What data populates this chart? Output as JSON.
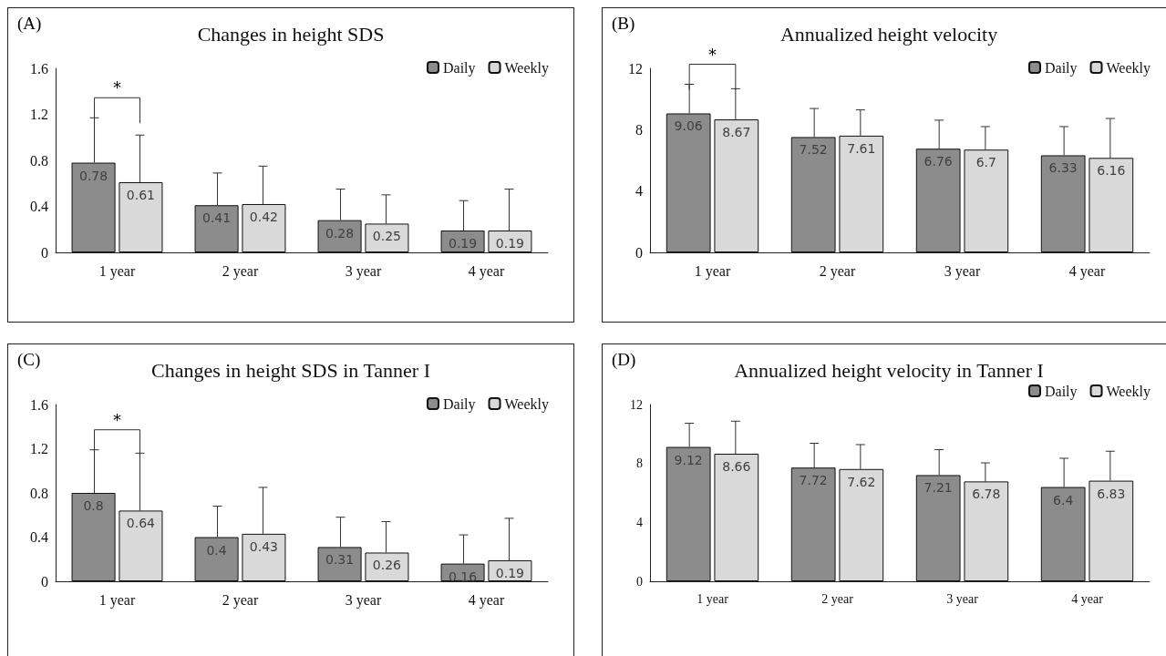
{
  "chart_data": [
    {
      "type": "bar",
      "title": "Changes in height SDS",
      "annotations": [
        "(A)",
        "*"
      ],
      "categories": [
        "1 year",
        "2 year",
        "3 year",
        "4 year"
      ],
      "series": [
        {
          "name": "Daily",
          "color": "#8c8c8c",
          "values": [
            0.78,
            0.41,
            0.28,
            0.19
          ],
          "errors": [
            [
              0.78,
              1.17
            ],
            [
              0.41,
              0.69
            ],
            [
              0.28,
              0.55
            ],
            [
              0.19,
              0.45
            ]
          ]
        },
        {
          "name": "Weekly",
          "color": "#d9d9d9",
          "values": [
            0.61,
            0.42,
            0.25,
            0.19
          ],
          "errors": [
            [
              0.61,
              1.02
            ],
            [
              0.42,
              0.75
            ],
            [
              0.25,
              0.5
            ],
            [
              0.19,
              0.55
            ]
          ]
        }
      ],
      "ylim": [
        0,
        1.6
      ],
      "yticks": [
        0,
        0.4,
        0.8,
        1.2,
        1.6
      ],
      "data_labels": true,
      "legend": "top right",
      "grid": false
    },
    {
      "type": "bar",
      "title": "Annualized height velocity",
      "annotations": [
        "(B)",
        "*"
      ],
      "categories": [
        "1 year",
        "2 year",
        "3 year",
        "4 year"
      ],
      "series": [
        {
          "name": "Daily",
          "color": "#8c8c8c",
          "values": [
            9.06,
            7.52,
            6.76,
            6.33
          ],
          "errors": [
            [
              9.06,
              10.96
            ],
            [
              7.52,
              9.38
            ],
            [
              6.76,
              8.62
            ],
            [
              6.33,
              8.2
            ]
          ]
        },
        {
          "name": "Weekly",
          "color": "#d9d9d9",
          "values": [
            8.67,
            7.61,
            6.7,
            6.16
          ],
          "errors": [
            [
              8.67,
              10.67
            ],
            [
              7.61,
              9.29
            ],
            [
              6.7,
              8.2
            ],
            [
              6.16,
              8.73
            ]
          ]
        }
      ],
      "ylim": [
        0,
        12
      ],
      "yticks": [
        0,
        4,
        8,
        12
      ],
      "data_labels": true,
      "legend": "top right",
      "grid": false
    },
    {
      "type": "bar",
      "title": "Changes in height SDS in Tanner I",
      "annotations": [
        "(C)",
        "*"
      ],
      "categories": [
        "1 year",
        "2 year",
        "3 year",
        "4 year"
      ],
      "series": [
        {
          "name": "Daily",
          "color": "#8c8c8c",
          "values": [
            0.8,
            0.4,
            0.31,
            0.16
          ],
          "errors": [
            [
              0.8,
              1.19
            ],
            [
              0.4,
              0.68
            ],
            [
              0.31,
              0.58
            ],
            [
              0.16,
              0.42
            ]
          ]
        },
        {
          "name": "Weekly",
          "color": "#d9d9d9",
          "values": [
            0.64,
            0.43,
            0.26,
            0.19
          ],
          "errors": [
            [
              0.64,
              1.16
            ],
            [
              0.43,
              0.85
            ],
            [
              0.26,
              0.54
            ],
            [
              0.19,
              0.57
            ]
          ]
        }
      ],
      "ylim": [
        0,
        1.6
      ],
      "yticks": [
        0,
        0.4,
        0.8,
        1.2,
        1.6
      ],
      "data_labels": true,
      "legend": "top right",
      "grid": false
    },
    {
      "type": "bar",
      "title": "Annualized height velocity in Tanner I",
      "annotations": [
        "(D)"
      ],
      "categories": [
        "1 year",
        "2 year",
        "3 year",
        "4 year"
      ],
      "series": [
        {
          "name": "Daily",
          "color": "#8c8c8c",
          "values": [
            9.12,
            7.72,
            7.21,
            6.4
          ],
          "errors": [
            [
              9.12,
              10.73
            ],
            [
              7.72,
              9.37
            ],
            [
              7.21,
              8.94
            ],
            [
              6.4,
              8.35
            ]
          ]
        },
        {
          "name": "Weekly",
          "color": "#d9d9d9",
          "values": [
            8.66,
            7.62,
            6.78,
            6.83
          ],
          "errors": [
            [
              8.66,
              10.87
            ],
            [
              7.62,
              9.28
            ],
            [
              6.78,
              8.04
            ],
            [
              6.83,
              8.83
            ]
          ]
        }
      ],
      "ylim": [
        0,
        12
      ],
      "yticks": [
        0,
        4,
        8,
        12
      ],
      "data_labels": true,
      "legend": "top right",
      "grid": false
    }
  ]
}
